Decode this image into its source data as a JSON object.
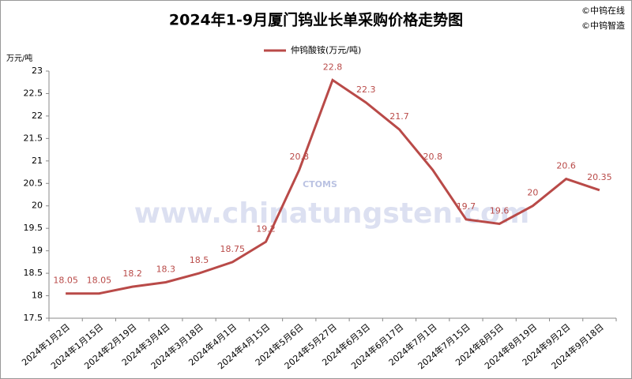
{
  "chart_data": {
    "type": "line",
    "title": "2024年1-9月厦门钨业长单采购价格走势图",
    "copyright": [
      "©中钨在线",
      "©中钨智造"
    ],
    "y_axis_label": "万元/吨",
    "watermark": [
      "CTOMS",
      "www.chinatungsten.com"
    ],
    "categories": [
      "2024年1月2日",
      "2024年1月15日",
      "2024年2月19日",
      "2024年3月4日",
      "2024年3月18日",
      "2024年4月1日",
      "2024年4月15日",
      "2024年5月6日",
      "2024年5月27日",
      "2024年6月3日",
      "2024年6月17日",
      "2024年7月1日",
      "2024年7月15日",
      "2024年8月5日",
      "2024年8月19日",
      "2024年9月2日",
      "2024年9月18日"
    ],
    "series": [
      {
        "name": "仲钨酸铵(万元/吨)",
        "color": "#b94a48",
        "values": [
          18.05,
          18.05,
          18.2,
          18.3,
          18.5,
          18.75,
          19.2,
          20.8,
          22.8,
          22.3,
          21.7,
          20.8,
          19.7,
          19.6,
          20,
          20.6,
          20.35
        ]
      }
    ],
    "ylim": [
      17.5,
      23
    ],
    "yticks": [
      17.5,
      18,
      18.5,
      19,
      19.5,
      20,
      20.5,
      21,
      21.5,
      22,
      22.5,
      23
    ],
    "grid": false,
    "legend": "top"
  }
}
